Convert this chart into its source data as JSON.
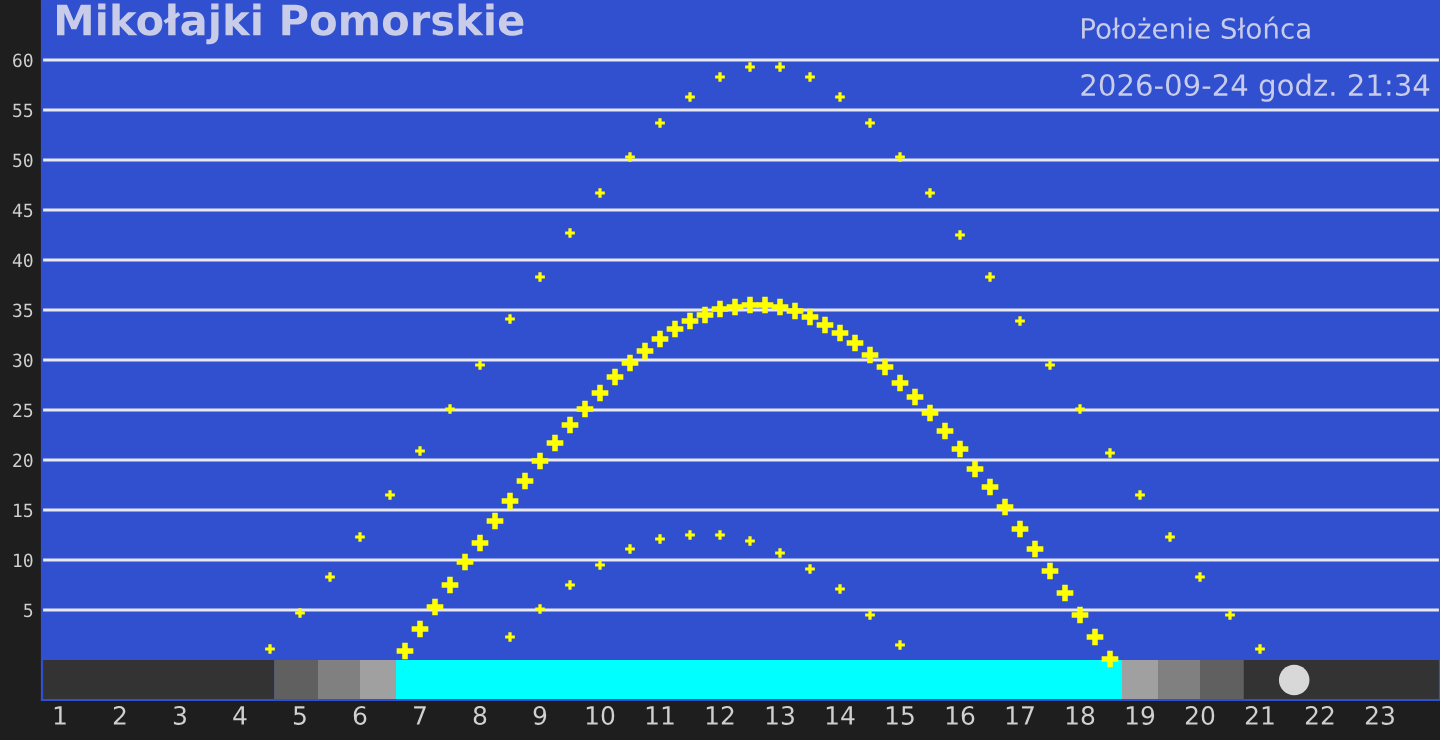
{
  "chart_data": {
    "type": "scatter",
    "title": "Mikołajki Pomorskie",
    "subtitle": "Położenie Słońca",
    "annotations": [
      "2026-09-24 godz. 21:34"
    ],
    "xlim": [
      0.7,
      24
    ],
    "xticks": [
      1,
      2,
      3,
      4,
      5,
      6,
      7,
      8,
      9,
      10,
      11,
      12,
      13,
      14,
      15,
      16,
      17,
      18,
      19,
      20,
      21,
      22,
      23
    ],
    "ylim": [
      -4,
      66
    ],
    "yticks": [
      5,
      10,
      15,
      20,
      25,
      30,
      35,
      40,
      45,
      50,
      55,
      60
    ],
    "grid": "y",
    "marker": "cross",
    "series": [
      {
        "color": "#ffff00",
        "x": [
          6.75,
          7.0,
          7.25,
          7.5,
          7.75,
          8.0,
          8.25,
          8.5,
          8.75,
          9.0,
          9.25,
          9.5,
          9.75,
          10.0,
          10.25,
          10.5,
          10.75,
          11.0,
          11.25,
          11.5,
          11.75,
          12.0,
          12.25,
          12.5,
          12.75,
          13.0,
          13.25,
          13.5,
          13.75,
          14.0,
          14.25,
          14.5,
          14.75,
          15.0,
          15.25,
          15.5,
          15.75,
          16.0,
          16.25,
          16.5,
          16.75,
          17.0,
          17.25,
          17.5,
          17.75,
          18.0,
          18.25,
          18.5
        ],
        "values": [
          0.9,
          3.1,
          5.3,
          7.5,
          9.8,
          11.7,
          13.9,
          15.9,
          17.9,
          19.9,
          21.7,
          23.5,
          25.1,
          26.7,
          28.3,
          29.7,
          30.9,
          32.1,
          33.1,
          33.9,
          34.5,
          35.1,
          35.3,
          35.5,
          35.5,
          35.3,
          34.9,
          34.3,
          33.5,
          32.7,
          31.7,
          30.5,
          29.3,
          27.7,
          26.3,
          24.7,
          22.9,
          21.1,
          19.1,
          17.3,
          15.3,
          13.1,
          11.1,
          8.9,
          6.7,
          4.5,
          2.3,
          0.1
        ]
      },
      {
        "color": "#ffff00",
        "x": [
          4.5,
          5.0,
          5.5,
          6.0,
          6.5,
          7.0,
          7.5,
          8.0,
          8.5,
          9.0,
          9.5,
          10.0,
          10.5,
          11.0,
          11.5,
          12.0,
          12.5,
          13.0,
          13.5,
          14.0,
          14.5,
          15.0,
          15.5,
          16.0,
          16.5,
          17.0,
          17.5,
          18.0,
          18.5,
          19.0,
          19.5,
          20.0,
          20.5,
          21.0
        ],
        "values": [
          1.1,
          4.7,
          8.3,
          12.3,
          16.5,
          20.9,
          25.1,
          29.5,
          34.1,
          38.3,
          42.7,
          46.7,
          50.3,
          53.7,
          56.3,
          58.3,
          59.3,
          59.3,
          58.3,
          56.3,
          53.7,
          50.3,
          46.7,
          42.5,
          38.3,
          33.9,
          29.5,
          25.1,
          20.7,
          16.5,
          12.3,
          8.3,
          4.5,
          1.1
        ]
      },
      {
        "color": "#ffff00",
        "x": [
          8.5,
          9.0,
          9.5,
          10.0,
          10.5,
          11.0,
          11.5,
          12.0,
          12.5,
          13.0,
          13.5,
          14.0,
          14.5,
          15.0
        ],
        "values": [
          2.3,
          5.1,
          7.5,
          9.5,
          11.1,
          12.1,
          12.5,
          12.5,
          11.9,
          10.7,
          9.1,
          7.1,
          4.5,
          1.5
        ]
      },
      {
        "color": "#d8d8d8",
        "marker": "circle",
        "x": [
          21.57
        ],
        "values": [
          -2
        ]
      }
    ],
    "bands": [
      {
        "axis": "x",
        "from": 0.7,
        "to": 4.57,
        "color": "#333333"
      },
      {
        "axis": "x",
        "from": 4.57,
        "to": 5.3,
        "color": "#606060"
      },
      {
        "axis": "x",
        "from": 5.3,
        "to": 6.0,
        "color": "#808080"
      },
      {
        "axis": "x",
        "from": 6.0,
        "to": 6.6,
        "color": "#a0a0a0"
      },
      {
        "axis": "x",
        "from": 6.6,
        "to": 18.7,
        "color": "#00ffff"
      },
      {
        "axis": "x",
        "from": 18.7,
        "to": 19.3,
        "color": "#a0a0a0"
      },
      {
        "axis": "x",
        "from": 19.3,
        "to": 20.0,
        "color": "#808080"
      },
      {
        "axis": "x",
        "from": 20.0,
        "to": 20.73,
        "color": "#606060"
      },
      {
        "axis": "x",
        "from": 20.73,
        "to": 24,
        "color": "#333333"
      }
    ]
  }
}
